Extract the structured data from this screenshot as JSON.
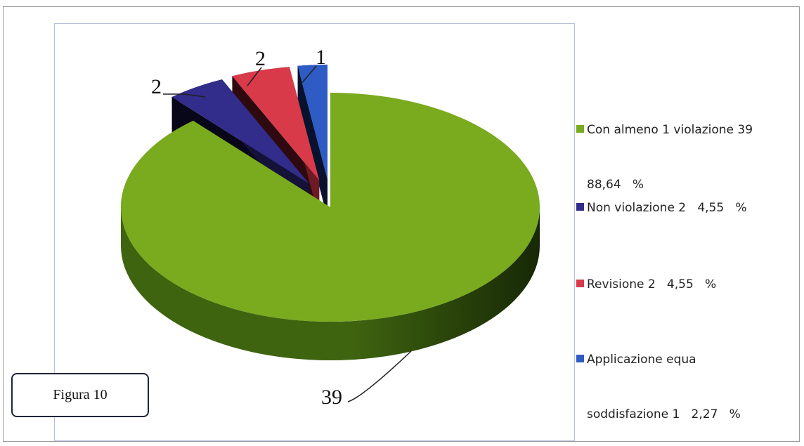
{
  "figure_label": "Figura 10",
  "colors": {
    "green": "#7aaa1e",
    "purple": "#322c8a",
    "red": "#d83a4a",
    "blue": "#2e5bc4"
  },
  "chart_data": {
    "type": "pie",
    "title": "",
    "categories": [
      "Con almeno 1 violazione 39 88,64 %",
      "Non violazione 2 4,55 %",
      "Revisione 2 4,55 %",
      "Applicazione equa soddisfazione 1 2,27 %"
    ],
    "values": [
      39,
      2,
      2,
      1
    ],
    "percentages": [
      88.64,
      4.55,
      4.55,
      2.27
    ],
    "data_labels": [
      "39",
      "2",
      "2",
      "1"
    ],
    "legend_position": "right",
    "exploded": true,
    "three_d": true
  },
  "legend": [
    {
      "line1": "Con almeno 1 violazione 39",
      "line2": "88,64   %",
      "color_key": "green"
    },
    {
      "line1": "Non violazione 2   4,55   %",
      "line2": "",
      "color_key": "purple"
    },
    {
      "line1": "Revisione 2   4,55   %",
      "line2": "",
      "color_key": "red"
    },
    {
      "line1": "Applicazione equa",
      "line2": "soddisfazione 1   2,27   %",
      "color_key": "blue"
    }
  ]
}
